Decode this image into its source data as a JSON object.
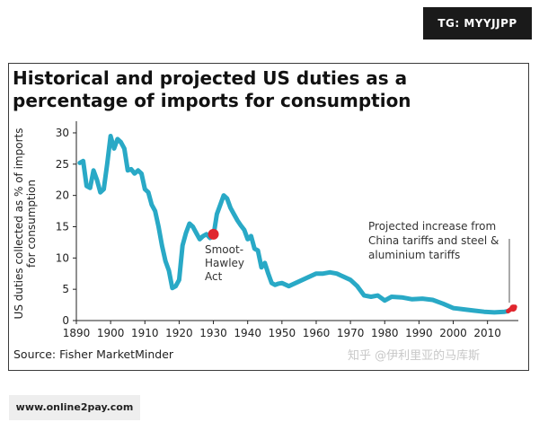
{
  "badges": {
    "top_right": "TG: MYYJJPP",
    "bottom_left": "www.online2pay.com"
  },
  "source": "Source: Fisher MarketMinder",
  "watermark": "知乎 @伊利里亚的马库斯",
  "colors": {
    "line": "#29a9c6",
    "marker": "#e0262e",
    "axis": "#222222",
    "annotation_line": "#555555"
  },
  "chart_data": {
    "type": "line",
    "title": "Historical and projected US duties as a percentage of imports for consumption",
    "title_lines": [
      "Historical and projected US duties as a",
      "percentage of imports for consumption"
    ],
    "xlabel": "",
    "ylabel": "US duties collected as % of imports for consumption",
    "ylabel_lines": [
      "US duties collected as % of imports",
      "for consumption"
    ],
    "xlim": [
      1890,
      2019
    ],
    "ylim": [
      0,
      31
    ],
    "xticks": [
      1890,
      1900,
      1910,
      1920,
      1930,
      1940,
      1950,
      1960,
      1970,
      1980,
      1990,
      2000,
      2010
    ],
    "yticks": [
      0,
      5,
      10,
      15,
      20,
      25,
      30
    ],
    "grid": false,
    "series": [
      {
        "x": [
          1891,
          1892,
          1893,
          1894,
          1895,
          1896,
          1897,
          1898,
          1899,
          1900,
          1901,
          1902,
          1903,
          1904,
          1905,
          1906,
          1907,
          1908,
          1909,
          1910,
          1911,
          1912,
          1913,
          1914,
          1915,
          1916,
          1917,
          1918,
          1919,
          1920,
          1921,
          1922,
          1923,
          1924,
          1925,
          1926,
          1927,
          1928,
          1929,
          1930,
          1931,
          1932,
          1933,
          1934,
          1935,
          1936,
          1937,
          1938,
          1939,
          1940,
          1941,
          1942,
          1943,
          1944,
          1945,
          1946,
          1947,
          1948,
          1949,
          1950,
          1952,
          1954,
          1956,
          1958,
          1960,
          1962,
          1964,
          1966,
          1968,
          1970,
          1972,
          1974,
          1976,
          1978,
          1980,
          1982,
          1985,
          1988,
          1991,
          1994,
          1997,
          2000,
          2003,
          2006,
          2009,
          2012,
          2015,
          2016
        ],
        "y": [
          25.2,
          25.5,
          21.5,
          21.2,
          24,
          22.5,
          20.5,
          21,
          25,
          29.5,
          27.5,
          29,
          28.5,
          27.5,
          24,
          24.2,
          23.5,
          24,
          23.5,
          21,
          20.5,
          18.5,
          17.5,
          15,
          12,
          9.5,
          8,
          5.2,
          5.5,
          6.5,
          12,
          14,
          15.5,
          15,
          14,
          13,
          13.5,
          13.8,
          13.2,
          13.5,
          17,
          18.5,
          20,
          19.5,
          18,
          17,
          16,
          15.2,
          14.5,
          13,
          13.5,
          11.5,
          11.2,
          8.5,
          9.2,
          7.5,
          6,
          5.7,
          5.9,
          6,
          5.5,
          6,
          6.5,
          7,
          7.5,
          7.5,
          7.7,
          7.5,
          7,
          6.5,
          5.5,
          4,
          3.8,
          4,
          3.2,
          3.8,
          3.7,
          3.4,
          3.5,
          3.3,
          2.7,
          2,
          1.8,
          1.6,
          1.4,
          1.3,
          1.4,
          1.5
        ]
      },
      {
        "x": [
          2016,
          2017,
          2018
        ],
        "y": [
          1.5,
          1.9,
          2.2
        ]
      }
    ],
    "markers": [
      {
        "x": 1930,
        "y": 13.8
      },
      {
        "x": 2017.5,
        "y": 2.0
      }
    ],
    "annotations": [
      {
        "lines": [
          "Smoot-",
          "Hawley",
          "Act"
        ]
      },
      {
        "lines": [
          "Projected increase from",
          "China tariffs and steel &",
          "aluminium tariffs"
        ]
      }
    ]
  }
}
